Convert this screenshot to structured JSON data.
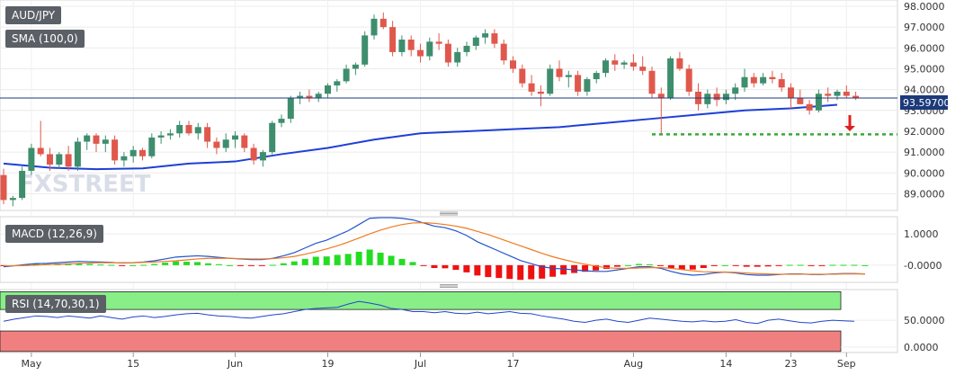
{
  "symbol": "AUD/JPY",
  "indicators": {
    "sma_label": "SMA (100,0)",
    "macd_label": "MACD (12,26,9)",
    "rsi_label": "RSI (14,70,30,1)"
  },
  "price_tag": "93.59700",
  "watermark": "FXSTREET",
  "colors": {
    "up": "#3e8e6e",
    "down": "#e0584c",
    "sma": "#1f3fd6",
    "support": "#3aa83a",
    "arrow": "#e02020",
    "macd_line": "#2255cc",
    "signal_line": "#f07a20",
    "hist_up": "#22dd22",
    "hist_down": "#ee1111",
    "rsi_line": "#2244cc",
    "overbought_fill": "#88ee88",
    "oversold_fill": "#f08080"
  },
  "chart_data": [
    {
      "type": "candlestick",
      "title": "AUD/JPY",
      "y_ticks": [
        "98.0000",
        "97.0000",
        "96.0000",
        "95.0000",
        "94.0000",
        "93.0000",
        "92.0000",
        "91.0000",
        "90.0000",
        "89.0000"
      ],
      "ylim": [
        88.2,
        98.3
      ],
      "x_ticks": [
        {
          "label": "May",
          "index": 3
        },
        {
          "label": "15",
          "index": 14
        },
        {
          "label": "Jun",
          "index": 25
        },
        {
          "label": "19",
          "index": 35
        },
        {
          "label": "Jul",
          "index": 45
        },
        {
          "label": "17",
          "index": 55
        },
        {
          "label": "Aug",
          "index": 68
        },
        {
          "label": "14",
          "index": 78
        },
        {
          "label": "23",
          "index": 85
        },
        {
          "label": "Sep",
          "index": 91
        }
      ],
      "last_price": 93.597,
      "support_level": 91.85,
      "candles": [
        [
          89.9,
          90.2,
          88.5,
          88.7
        ],
        [
          88.7,
          88.9,
          88.4,
          88.8
        ],
        [
          88.8,
          90.3,
          88.7,
          90.1
        ],
        [
          90.1,
          91.4,
          89.9,
          91.2
        ],
        [
          91.2,
          92.5,
          90.8,
          90.9
        ],
        [
          90.9,
          91.2,
          90.1,
          90.4
        ],
        [
          90.4,
          91.0,
          90.2,
          90.9
        ],
        [
          90.9,
          91.3,
          90.1,
          90.3
        ],
        [
          90.3,
          91.7,
          90.1,
          91.5
        ],
        [
          91.5,
          91.9,
          91.1,
          91.8
        ],
        [
          91.8,
          91.9,
          91.0,
          91.4
        ],
        [
          91.4,
          91.8,
          91.0,
          91.6
        ],
        [
          91.6,
          91.8,
          90.4,
          90.6
        ],
        [
          90.6,
          91.0,
          90.3,
          90.8
        ],
        [
          90.8,
          91.3,
          90.5,
          91.1
        ],
        [
          91.1,
          91.2,
          90.6,
          90.8
        ],
        [
          90.8,
          91.9,
          90.7,
          91.7
        ],
        [
          91.7,
          92.0,
          91.4,
          91.8
        ],
        [
          91.8,
          92.1,
          91.6,
          91.9
        ],
        [
          91.9,
          92.5,
          91.7,
          92.3
        ],
        [
          92.3,
          92.5,
          91.8,
          91.9
        ],
        [
          91.9,
          92.4,
          91.6,
          92.2
        ],
        [
          92.2,
          92.4,
          91.2,
          91.5
        ],
        [
          91.5,
          91.7,
          90.9,
          91.2
        ],
        [
          91.2,
          91.9,
          91.0,
          91.6
        ],
        [
          91.6,
          92.0,
          91.2,
          91.8
        ],
        [
          91.8,
          91.9,
          91.0,
          91.2
        ],
        [
          91.2,
          91.4,
          90.4,
          90.6
        ],
        [
          90.6,
          91.1,
          90.3,
          91.0
        ],
        [
          91.0,
          92.5,
          90.9,
          92.4
        ],
        [
          92.4,
          92.8,
          92.2,
          92.6
        ],
        [
          92.6,
          93.7,
          92.4,
          93.6
        ],
        [
          93.6,
          93.9,
          93.3,
          93.7
        ],
        [
          93.7,
          94.0,
          93.4,
          93.6
        ],
        [
          93.6,
          93.9,
          93.4,
          93.8
        ],
        [
          93.8,
          94.3,
          93.6,
          94.2
        ],
        [
          94.2,
          94.5,
          93.9,
          94.4
        ],
        [
          94.4,
          95.2,
          94.3,
          95.0
        ],
        [
          95.0,
          95.3,
          94.7,
          95.2
        ],
        [
          95.2,
          96.8,
          95.1,
          96.6
        ],
        [
          96.6,
          97.6,
          96.4,
          97.4
        ],
        [
          97.4,
          97.7,
          96.9,
          97.0
        ],
        [
          97.0,
          97.3,
          95.6,
          95.8
        ],
        [
          95.8,
          96.6,
          95.6,
          96.4
        ],
        [
          96.4,
          96.6,
          95.6,
          95.9
        ],
        [
          95.9,
          96.2,
          95.3,
          95.6
        ],
        [
          95.6,
          96.5,
          95.4,
          96.3
        ],
        [
          96.3,
          96.7,
          95.9,
          96.2
        ],
        [
          96.2,
          96.4,
          95.1,
          95.3
        ],
        [
          95.3,
          96.0,
          95.1,
          95.8
        ],
        [
          95.8,
          96.3,
          95.6,
          96.1
        ],
        [
          96.1,
          96.6,
          95.9,
          96.5
        ],
        [
          96.5,
          96.9,
          96.2,
          96.7
        ],
        [
          96.7,
          96.9,
          96.0,
          96.2
        ],
        [
          96.2,
          96.4,
          95.2,
          95.4
        ],
        [
          95.4,
          95.6,
          94.8,
          95.0
        ],
        [
          95.0,
          95.2,
          94.1,
          94.3
        ],
        [
          94.3,
          94.7,
          93.7,
          93.9
        ],
        [
          93.9,
          94.2,
          93.2,
          93.8
        ],
        [
          93.8,
          95.2,
          93.7,
          95.0
        ],
        [
          95.0,
          95.4,
          94.4,
          94.6
        ],
        [
          94.6,
          94.9,
          94.1,
          94.7
        ],
        [
          94.7,
          94.9,
          93.7,
          93.9
        ],
        [
          93.9,
          94.6,
          93.7,
          94.5
        ],
        [
          94.5,
          94.9,
          94.3,
          94.8
        ],
        [
          94.8,
          95.5,
          94.6,
          95.4
        ],
        [
          95.4,
          95.7,
          94.9,
          95.2
        ],
        [
          95.2,
          95.4,
          95.0,
          95.3
        ],
        [
          95.3,
          95.7,
          94.9,
          95.1
        ],
        [
          95.1,
          95.6,
          94.7,
          94.9
        ],
        [
          94.9,
          95.1,
          93.6,
          93.8
        ],
        [
          93.8,
          94.1,
          91.9,
          93.6
        ],
        [
          93.6,
          95.6,
          93.5,
          95.5
        ],
        [
          95.5,
          95.8,
          94.9,
          95.0
        ],
        [
          95.0,
          95.2,
          93.7,
          93.9
        ],
        [
          93.9,
          94.3,
          93.0,
          93.3
        ],
        [
          93.3,
          94.0,
          93.1,
          93.8
        ],
        [
          93.8,
          94.1,
          93.2,
          93.5
        ],
        [
          93.5,
          94.0,
          93.3,
          93.8
        ],
        [
          93.8,
          94.3,
          93.5,
          94.1
        ],
        [
          94.1,
          95.0,
          93.9,
          94.6
        ],
        [
          94.6,
          94.8,
          94.1,
          94.3
        ],
        [
          94.3,
          94.8,
          94.2,
          94.6
        ],
        [
          94.6,
          94.9,
          94.3,
          94.5
        ],
        [
          94.5,
          94.8,
          93.9,
          94.1
        ],
        [
          94.1,
          94.3,
          93.1,
          93.6
        ],
        [
          93.6,
          94.0,
          93.3,
          93.3
        ],
        [
          93.3,
          93.5,
          92.8,
          93.0
        ],
        [
          93.0,
          94.0,
          92.9,
          93.8
        ],
        [
          93.8,
          94.1,
          93.4,
          93.7
        ],
        [
          93.7,
          94.0,
          93.5,
          93.9
        ],
        [
          93.9,
          94.2,
          93.6,
          93.7
        ],
        [
          93.7,
          93.9,
          93.5,
          93.6
        ]
      ],
      "sma": [
        [
          0,
          90.45
        ],
        [
          5,
          90.25
        ],
        [
          10,
          90.18
        ],
        [
          15,
          90.22
        ],
        [
          20,
          90.45
        ],
        [
          25,
          90.55
        ],
        [
          30,
          90.9
        ],
        [
          35,
          91.2
        ],
        [
          40,
          91.6
        ],
        [
          45,
          91.9
        ],
        [
          50,
          92.0
        ],
        [
          55,
          92.1
        ],
        [
          60,
          92.2
        ],
        [
          65,
          92.4
        ],
        [
          70,
          92.6
        ],
        [
          75,
          92.8
        ],
        [
          80,
          93.0
        ],
        [
          85,
          93.1
        ],
        [
          88,
          93.2
        ],
        [
          90,
          93.27
        ]
      ]
    },
    {
      "type": "line",
      "title": "MACD (12,26,9)",
      "y_ticks": [
        "1.0000",
        "-0.0000"
      ],
      "ylim": [
        -0.55,
        1.55
      ],
      "series": [
        {
          "name": "MACD",
          "values": [
            -0.05,
            -0.02,
            0.02,
            0.05,
            0.06,
            0.08,
            0.1,
            0.12,
            0.11,
            0.1,
            0.09,
            0.07,
            0.08,
            0.1,
            0.14,
            0.2,
            0.26,
            0.28,
            0.3,
            0.28,
            0.25,
            0.22,
            0.2,
            0.18,
            0.18,
            0.22,
            0.3,
            0.4,
            0.55,
            0.7,
            0.8,
            0.95,
            1.1,
            1.3,
            1.5,
            1.52,
            1.52,
            1.5,
            1.45,
            1.35,
            1.25,
            1.2,
            1.1,
            0.95,
            0.75,
            0.6,
            0.45,
            0.3,
            0.15,
            0.05,
            -0.05,
            -0.1,
            -0.12,
            -0.15,
            -0.18,
            -0.2,
            -0.2,
            -0.15,
            -0.1,
            -0.05,
            -0.05,
            -0.1,
            -0.2,
            -0.28,
            -0.32,
            -0.3,
            -0.25,
            -0.22,
            -0.25,
            -0.3,
            -0.32,
            -0.32,
            -0.3,
            -0.28,
            -0.28,
            -0.3,
            -0.3,
            -0.28,
            -0.27,
            -0.27,
            -0.28
          ]
        },
        {
          "name": "Signal",
          "values": [
            -0.02,
            -0.02,
            -0.01,
            0.0,
            0.02,
            0.03,
            0.04,
            0.06,
            0.07,
            0.08,
            0.08,
            0.08,
            0.08,
            0.09,
            0.1,
            0.12,
            0.14,
            0.17,
            0.2,
            0.22,
            0.22,
            0.22,
            0.21,
            0.2,
            0.2,
            0.21,
            0.24,
            0.28,
            0.35,
            0.43,
            0.52,
            0.62,
            0.74,
            0.87,
            1.0,
            1.12,
            1.22,
            1.3,
            1.35,
            1.36,
            1.34,
            1.3,
            1.25,
            1.18,
            1.08,
            0.98,
            0.86,
            0.74,
            0.62,
            0.5,
            0.38,
            0.27,
            0.18,
            0.1,
            0.03,
            -0.03,
            -0.08,
            -0.1,
            -0.1,
            -0.09,
            -0.08,
            -0.08,
            -0.1,
            -0.14,
            -0.18,
            -0.21,
            -0.22,
            -0.22,
            -0.23,
            -0.25,
            -0.27,
            -0.28,
            -0.29,
            -0.29,
            -0.29,
            -0.29,
            -0.29,
            -0.29,
            -0.28,
            -0.28,
            -0.28
          ]
        }
      ],
      "histogram": [
        -0.03,
        0.0,
        0.03,
        0.05,
        0.04,
        0.05,
        0.06,
        0.06,
        0.04,
        0.02,
        0.01,
        -0.01,
        0.0,
        0.01,
        0.04,
        0.08,
        0.12,
        0.11,
        0.1,
        0.06,
        0.03,
        0.0,
        -0.01,
        -0.02,
        -0.02,
        0.01,
        0.06,
        0.12,
        0.2,
        0.27,
        0.28,
        0.33,
        0.36,
        0.43,
        0.5,
        0.4,
        0.3,
        0.2,
        0.1,
        -0.01,
        -0.09,
        -0.1,
        -0.15,
        -0.23,
        -0.33,
        -0.38,
        -0.41,
        -0.44,
        -0.47,
        -0.45,
        -0.43,
        -0.37,
        -0.3,
        -0.25,
        -0.21,
        -0.17,
        -0.12,
        -0.05,
        0.0,
        0.04,
        0.03,
        -0.02,
        -0.1,
        -0.14,
        -0.14,
        -0.09,
        -0.03,
        0.0,
        -0.02,
        -0.05,
        -0.05,
        -0.04,
        -0.01,
        0.01,
        0.01,
        -0.01,
        -0.01,
        0.01,
        0.01,
        0.01,
        0.0
      ]
    },
    {
      "type": "line",
      "title": "RSI (14,70,30,1)",
      "y_ticks": [
        "50.0000",
        "0.0000"
      ],
      "ylim": [
        -10,
        107
      ],
      "overbought": 70,
      "oversold": 30,
      "series": [
        {
          "name": "RSI",
          "values": [
            48,
            52,
            55,
            58,
            57,
            55,
            58,
            56,
            54,
            58,
            55,
            52,
            56,
            58,
            55,
            57,
            60,
            62,
            63,
            60,
            58,
            57,
            55,
            54,
            57,
            60,
            62,
            66,
            70,
            72,
            73,
            74,
            80,
            85,
            82,
            78,
            72,
            70,
            66,
            66,
            64,
            66,
            63,
            62,
            65,
            62,
            64,
            66,
            63,
            62,
            58,
            55,
            52,
            48,
            46,
            50,
            52,
            48,
            46,
            50,
            54,
            52,
            50,
            48,
            47,
            49,
            47,
            48,
            51,
            46,
            44,
            50,
            52,
            49,
            46,
            45,
            48,
            50,
            49,
            48
          ]
        }
      ]
    }
  ]
}
